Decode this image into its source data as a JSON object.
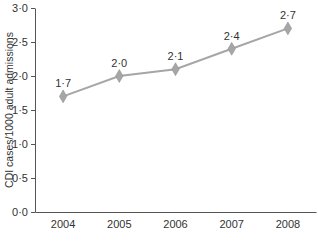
{
  "chart_data": {
    "type": "line",
    "y_label": "CDI cases/1000 adult admissions",
    "categories": [
      "2004",
      "2005",
      "2006",
      "2007",
      "2008"
    ],
    "values": [
      1.7,
      2.0,
      2.1,
      2.4,
      2.7
    ],
    "value_labels": [
      "1·7",
      "2·0",
      "2·1",
      "2·4",
      "2·7"
    ],
    "color": "#a6a6a6",
    "marker": "diamond",
    "ylim": [
      0,
      3
    ],
    "yticks": [
      {
        "value": 0,
        "label": "0·0"
      },
      {
        "value": 0.5,
        "label": "0·5"
      },
      {
        "value": 1,
        "label": "1·0"
      },
      {
        "value": 1.5,
        "label": "1·5"
      },
      {
        "value": 2,
        "label": "2·0"
      },
      {
        "value": 2.5,
        "label": "2·5"
      },
      {
        "value": 3,
        "label": "3·0"
      }
    ],
    "data_labels": true,
    "grid": false
  }
}
